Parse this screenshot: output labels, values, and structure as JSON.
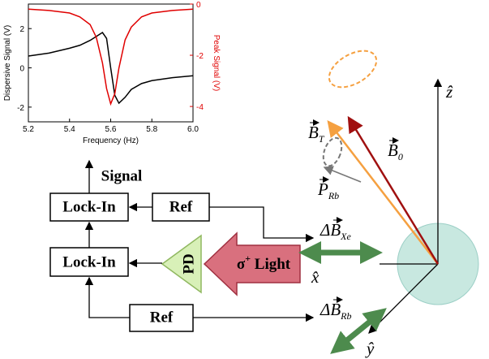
{
  "chart_data": {
    "type": "line",
    "x_label": "Frequency (Hz)",
    "y_label": "Dispersive Signal (V)",
    "y2_label": "Peak Signal (V)",
    "x": [
      5.2,
      5.3,
      5.4,
      5.45,
      5.5,
      5.53,
      5.56,
      5.58,
      5.6,
      5.62,
      5.64,
      5.67,
      5.7,
      5.75,
      5.8,
      5.9,
      6.0
    ],
    "series": [
      {
        "color": "#000000",
        "values": [
          0.6,
          0.75,
          1.0,
          1.15,
          1.4,
          1.6,
          1.8,
          1.5,
          0,
          -1.4,
          -1.8,
          -1.5,
          -1.1,
          -0.8,
          -0.65,
          -0.5,
          -0.4
        ]
      },
      {
        "color": "#e00000",
        "axis": "y2",
        "values": [
          -0.2,
          -0.25,
          -0.35,
          -0.5,
          -0.8,
          -1.3,
          -2.3,
          -3.3,
          -3.9,
          -3.5,
          -2.5,
          -1.4,
          -0.9,
          -0.5,
          -0.35,
          -0.25,
          -0.2
        ]
      }
    ],
    "xlim": [
      5.2,
      6.0
    ],
    "xticks": [
      5.2,
      5.4,
      5.6,
      5.8,
      {
        "value": 6,
        "label": "6.0"
      }
    ],
    "ylim": [
      -2.75,
      3.25
    ],
    "yticks": [
      -2,
      0,
      2
    ],
    "y2lim": [
      -4.6,
      0
    ],
    "y2ticks": [
      -4,
      -2,
      0
    ]
  },
  "blocks": {
    "signal": "Signal",
    "lockin_1": "Lock-In",
    "ref_1": "Ref",
    "lockin_2": "Lock-In",
    "ref_2": "Ref",
    "detector": "PD",
    "light": {
      "sigma": "σ",
      "sup": "+",
      "text": " Light"
    }
  },
  "labels": {
    "b_t": {
      "base": "B",
      "sub": "T"
    },
    "b_0": {
      "base": "B",
      "sub": "0"
    },
    "p_rb": {
      "base": "P",
      "sub": "Rb"
    },
    "db_xe": {
      "base": "ΔB",
      "sub": "Xe"
    },
    "db_rb": {
      "base": "ΔB",
      "sub": "Rb"
    },
    "x_axis": "x̂",
    "y_axis": "ŷ",
    "z_axis": "ẑ"
  }
}
